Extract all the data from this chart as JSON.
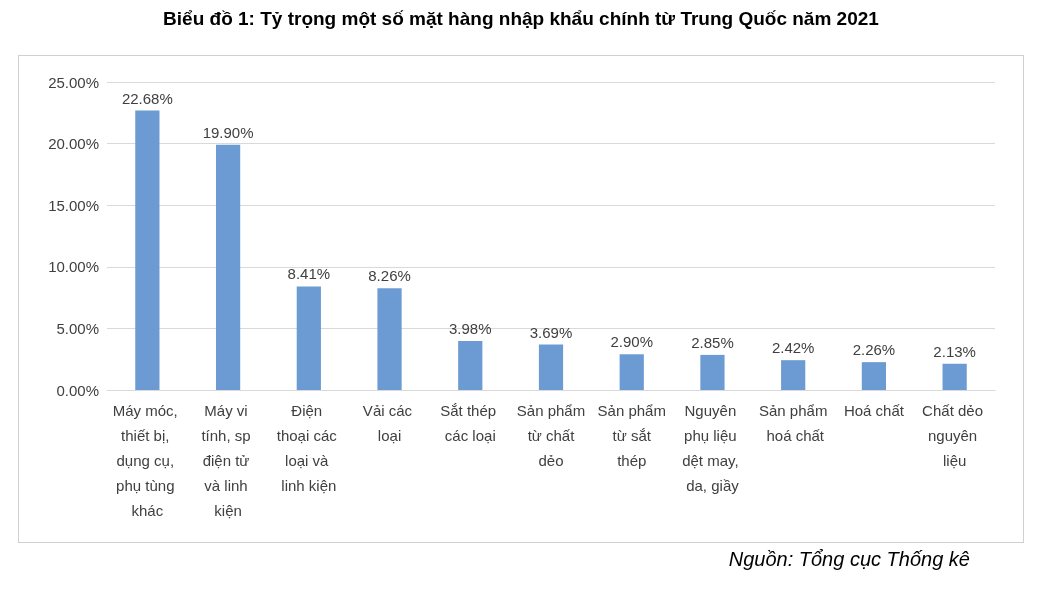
{
  "chart_data": {
    "type": "bar",
    "title": "Biểu đồ 1: Tỷ trọng một số mặt hàng nhập khẩu chính từ Trung Quốc năm 2021",
    "categories": [
      "Máy móc, thiết bị, dụng cụ, phụ tùng khác",
      "Máy vi tính, sp điện tử và linh kiện",
      "Điện thoại các loại và linh kiện",
      "Vải các loại",
      "Sắt thép các loại",
      "Sản phẩm từ chất dẻo",
      "Sản phẩm từ sắt thép",
      "Nguyên phụ liệu dệt may, da, giầy",
      "Sản phẩm hoá chất",
      "Hoá chất",
      "Chất dẻo nguyên liệu"
    ],
    "values": [
      22.68,
      19.9,
      8.41,
      8.26,
      3.98,
      3.69,
      2.9,
      2.85,
      2.42,
      2.26,
      2.13
    ],
    "value_labels": [
      "22.68%",
      "19.90%",
      "8.41%",
      "8.26%",
      "3.98%",
      "3.69%",
      "2.90%",
      "2.85%",
      "2.42%",
      "2.26%",
      "2.13%"
    ],
    "color": "#6b9bd2",
    "ylim": [
      0,
      25
    ],
    "yticks": [
      {
        "value": 0,
        "label": "0.00%"
      },
      {
        "value": 5,
        "label": "5.00%"
      },
      {
        "value": 10,
        "label": "10.00%"
      },
      {
        "value": 15,
        "label": "15.00%"
      },
      {
        "value": 20,
        "label": "20.00%"
      },
      {
        "value": 25,
        "label": "25.00%"
      }
    ],
    "grid": "y",
    "annotations": [
      "Nguồn: Tổng cục Thống kê"
    ]
  }
}
